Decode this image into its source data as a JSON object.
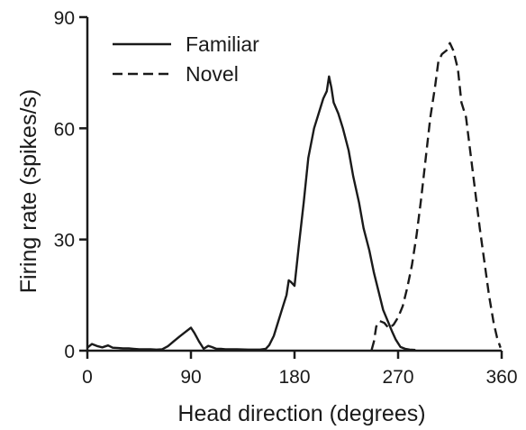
{
  "chart_data": {
    "type": "line",
    "xlabel": "Head direction (degrees)",
    "ylabel": "Firing rate (spikes/s)",
    "xlim": [
      0,
      360
    ],
    "ylim": [
      0,
      90
    ],
    "xticks": [
      0,
      90,
      180,
      270,
      360
    ],
    "yticks": [
      0,
      30,
      60,
      90
    ],
    "grid": false,
    "legend_position": "top-left",
    "series": [
      {
        "name": "Familiar",
        "style": "solid",
        "color": "#1a1a1a",
        "x": [
          0,
          4,
          9,
          13,
          18,
          22,
          27,
          31,
          36,
          40,
          45,
          50,
          55,
          60,
          65,
          70,
          75,
          80,
          85,
          90,
          93,
          97,
          101,
          105,
          108,
          112,
          116,
          120,
          125,
          130,
          140,
          150,
          155,
          158,
          162,
          166,
          170,
          173,
          175,
          177,
          180,
          184,
          188,
          192,
          197,
          201,
          205,
          208,
          210,
          212,
          214,
          218,
          222,
          227,
          231,
          236,
          240,
          245,
          249,
          253,
          257,
          261,
          265,
          268,
          272,
          276,
          280,
          285
        ],
        "y": [
          0.8,
          1.8,
          1.2,
          0.9,
          1.4,
          0.8,
          0.7,
          0.6,
          0.6,
          0.5,
          0.4,
          0.4,
          0.4,
          0.3,
          0.4,
          1.2,
          2.5,
          3.8,
          5.0,
          6.2,
          4.8,
          2.5,
          0.5,
          1.3,
          1.0,
          0.5,
          0.5,
          0.4,
          0.4,
          0.4,
          0.3,
          0.3,
          0.5,
          1.5,
          4.0,
          8.0,
          12.0,
          15.0,
          19.0,
          18.5,
          17.5,
          29.0,
          40.0,
          52.0,
          60.0,
          64.0,
          68.0,
          70.0,
          74.0,
          71.0,
          67.0,
          64.0,
          60.0,
          54.0,
          47.0,
          40.0,
          33.0,
          27.0,
          21.0,
          16.0,
          11.0,
          8.0,
          5.0,
          3.0,
          1.0,
          0.5,
          0.3,
          0.2
        ]
      },
      {
        "name": "Novel",
        "style": "dashed",
        "color": "#1a1a1a",
        "x": [
          247,
          249,
          251,
          254,
          258,
          262,
          266,
          270,
          274,
          278,
          282,
          286,
          290,
          294,
          298,
          302,
          305,
          308,
          312,
          315,
          318,
          322,
          325,
          329,
          333,
          337,
          341,
          345,
          349,
          353,
          356,
          359
        ],
        "y": [
          0.2,
          2.5,
          6.5,
          8.0,
          7.5,
          6.0,
          7.0,
          9.0,
          12.0,
          17.0,
          23.0,
          31.0,
          41.0,
          52.0,
          63.0,
          71.0,
          78.0,
          80.0,
          81.0,
          83.0,
          81.0,
          76.0,
          67.0,
          63.0,
          53.0,
          43.0,
          33.0,
          24.0,
          15.0,
          7.5,
          3.5,
          0.8
        ]
      }
    ]
  }
}
